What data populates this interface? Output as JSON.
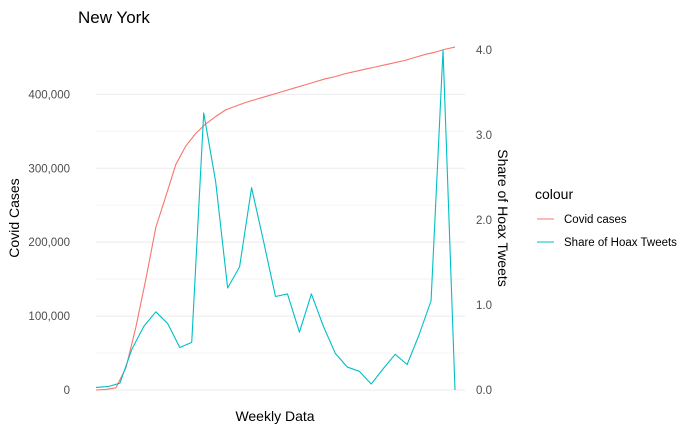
{
  "chart_data": {
    "type": "line",
    "title": "New York",
    "xlabel": "Weekly Data",
    "ylabel_left": "Covid Cases",
    "ylabel_right": "Share of Hoax Tweets",
    "ylim_left": [
      0,
      460000
    ],
    "ylim_right": [
      0,
      4.0
    ],
    "yticks_left": [
      {
        "value": 0,
        "label": "0"
      },
      {
        "value": 100000,
        "label": "100,000"
      },
      {
        "value": 200000,
        "label": "200,000"
      },
      {
        "value": 300000,
        "label": "300,000"
      },
      {
        "value": 400000,
        "label": "400,000"
      }
    ],
    "yticks_right": [
      {
        "value": 0,
        "label": "0.0"
      },
      {
        "value": 1,
        "label": "1.0"
      },
      {
        "value": 2,
        "label": "2.0"
      },
      {
        "value": 3,
        "label": "3.0"
      },
      {
        "value": 4,
        "label": "4.0"
      }
    ],
    "grid": true,
    "legend": {
      "title": "colour",
      "placement": "right",
      "entries": [
        {
          "label": "Covid cases",
          "color": "#F8766D"
        },
        {
          "label": "Share of Hoax Tweets",
          "color": "#00BFC4"
        }
      ]
    },
    "x": [
      1,
      2,
      3,
      4,
      5,
      6,
      7,
      8,
      9,
      10,
      11,
      12,
      13,
      14,
      15,
      16,
      17,
      18,
      19,
      20,
      21,
      22,
      23,
      24,
      25,
      26,
      27,
      28,
      29,
      30,
      31,
      32,
      33,
      34,
      35,
      36,
      37,
      38,
      39,
      40
    ],
    "series": [
      {
        "name": "Covid cases",
        "axis": "left",
        "color": "#F8766D",
        "values": [
          0,
          800,
          3000,
          30000,
          85000,
          150000,
          220000,
          262000,
          305000,
          330000,
          347000,
          360000,
          370000,
          379000,
          384000,
          389000,
          393000,
          397000,
          401000,
          405000,
          409000,
          413000,
          417000,
          421000,
          424000,
          428000,
          431000,
          434000,
          437000,
          440000,
          443000,
          446000,
          450000,
          454000,
          457000,
          461000,
          464000,
          null,
          null,
          null
        ]
      },
      {
        "name": "Share of Hoax Tweets",
        "axis": "right",
        "color": "#00BFC4",
        "values": [
          0.03,
          0.04,
          0.08,
          0.48,
          0.75,
          0.92,
          0.78,
          0.5,
          0.56,
          3.26,
          2.45,
          1.2,
          1.45,
          2.38,
          1.75,
          1.1,
          1.13,
          0.68,
          1.13,
          0.75,
          0.43,
          0.27,
          0.22,
          0.07,
          0.25,
          0.42,
          0.3,
          0.65,
          1.05,
          4.0,
          0.0,
          null,
          null,
          null,
          null,
          null,
          null,
          null,
          null,
          null
        ]
      }
    ]
  }
}
